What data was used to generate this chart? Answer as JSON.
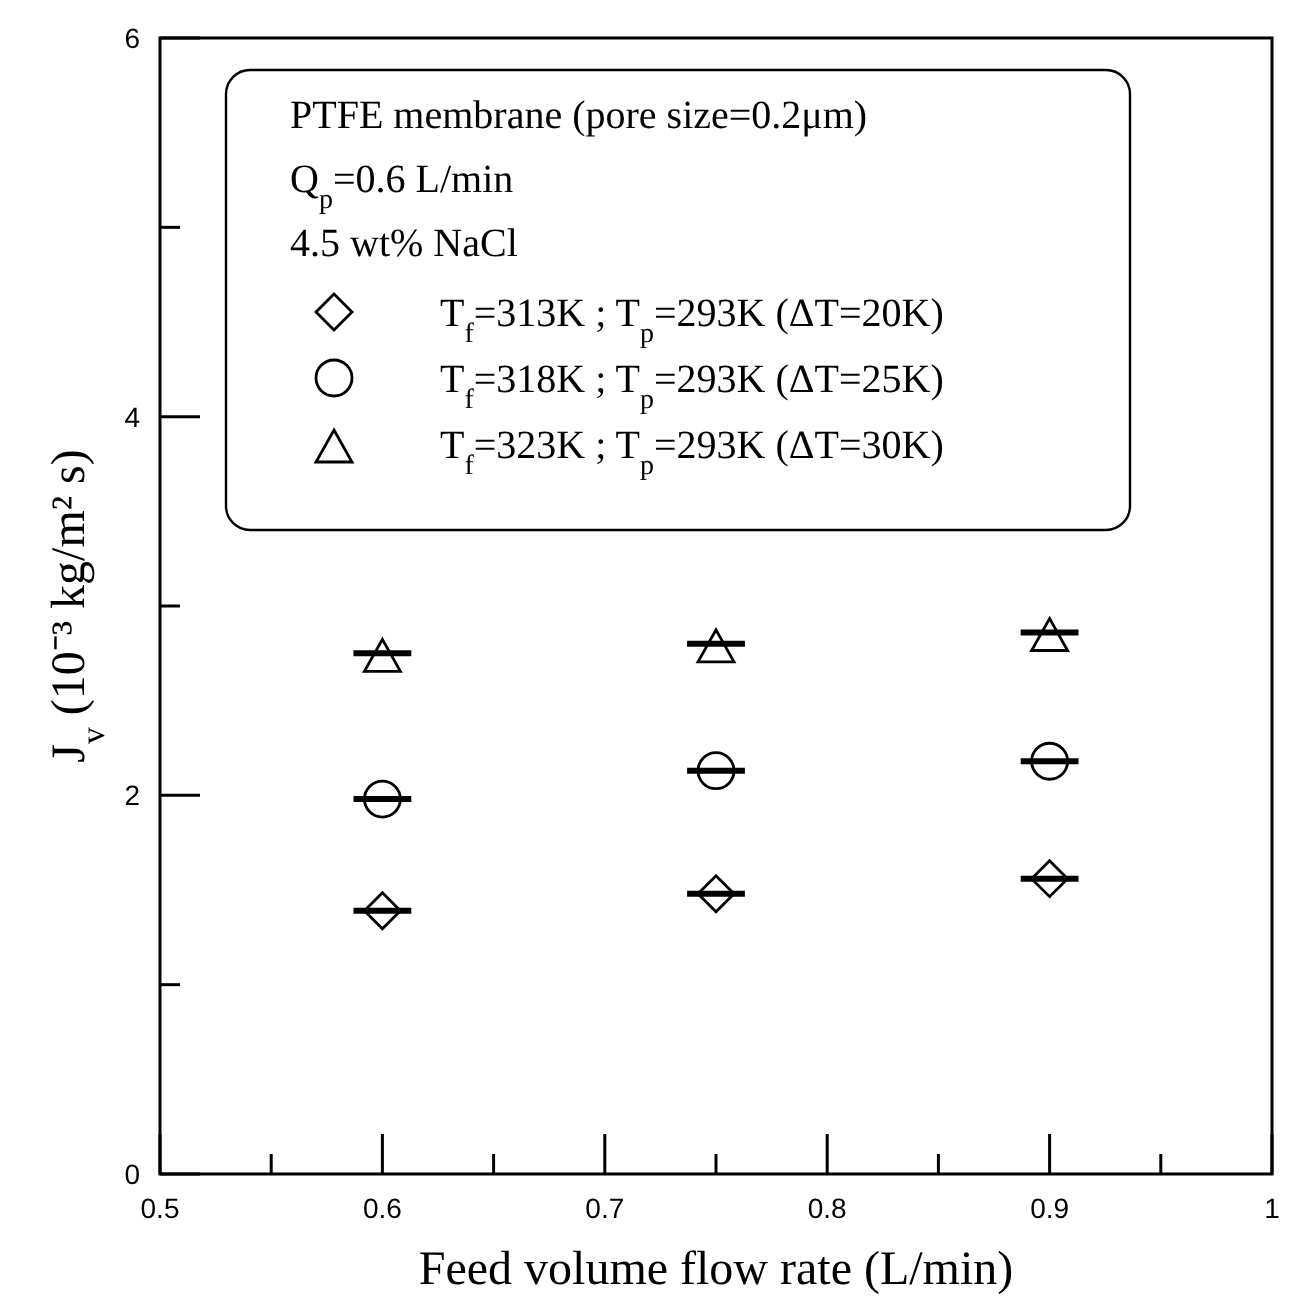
{
  "chart_data": {
    "type": "scatter",
    "xlabel": "Feed volume flow rate (L/min)",
    "ylabel": "J$_{v}$ (10⁻³ kg/m² s)",
    "xlim": [
      0.5,
      1
    ],
    "xticks": [
      0.5,
      {
        "value": 0.55,
        "label": null
      },
      0.6,
      {
        "value": 0.65,
        "label": null
      },
      0.7,
      {
        "value": 0.75,
        "label": null
      },
      0.8,
      {
        "value": 0.85,
        "label": null
      },
      0.9,
      {
        "value": 0.95,
        "label": null
      },
      {
        "value": 1,
        "label": "1"
      }
    ],
    "ylim": [
      0,
      6
    ],
    "yticks": [
      0,
      {
        "value": 1,
        "label": null
      },
      2,
      {
        "value": 3,
        "label": null
      },
      4,
      {
        "value": 5,
        "label": null
      },
      6
    ],
    "grid": false,
    "legend": "top",
    "annotations": [
      "PTFE membrane (pore size=0.2μm)",
      "Q$_{p}$=0.6 L/min",
      "4.5 wt% NaCl"
    ],
    "series": [
      {
        "name": "T$_{f}$=313K ; T$_{p}$=293K (ΔT=20K)",
        "color": "#000000",
        "marker": "diamond",
        "x": [
          0.6,
          0.75,
          0.9
        ],
        "values": [
          1.39,
          1.48,
          1.56
        ],
        "xerrors": [
          0.013,
          0.013,
          0.013
        ]
      },
      {
        "name": "T$_{f}$=318K ; T$_{p}$=293K (ΔT=25K)",
        "color": "#000000",
        "marker": "circle",
        "x": [
          0.6,
          0.75,
          0.9
        ],
        "values": [
          1.98,
          2.13,
          2.18
        ],
        "xerrors": [
          0.013,
          0.013,
          0.013
        ]
      },
      {
        "name": "T$_{f}$=323K ; T$_{p}$=293K (ΔT=30K)",
        "color": "#000000",
        "marker": "triangle",
        "x": [
          0.6,
          0.75,
          0.9
        ],
        "values": [
          2.75,
          2.8,
          2.86
        ],
        "xerrors": [
          0.013,
          0.013,
          0.013
        ]
      }
    ]
  }
}
